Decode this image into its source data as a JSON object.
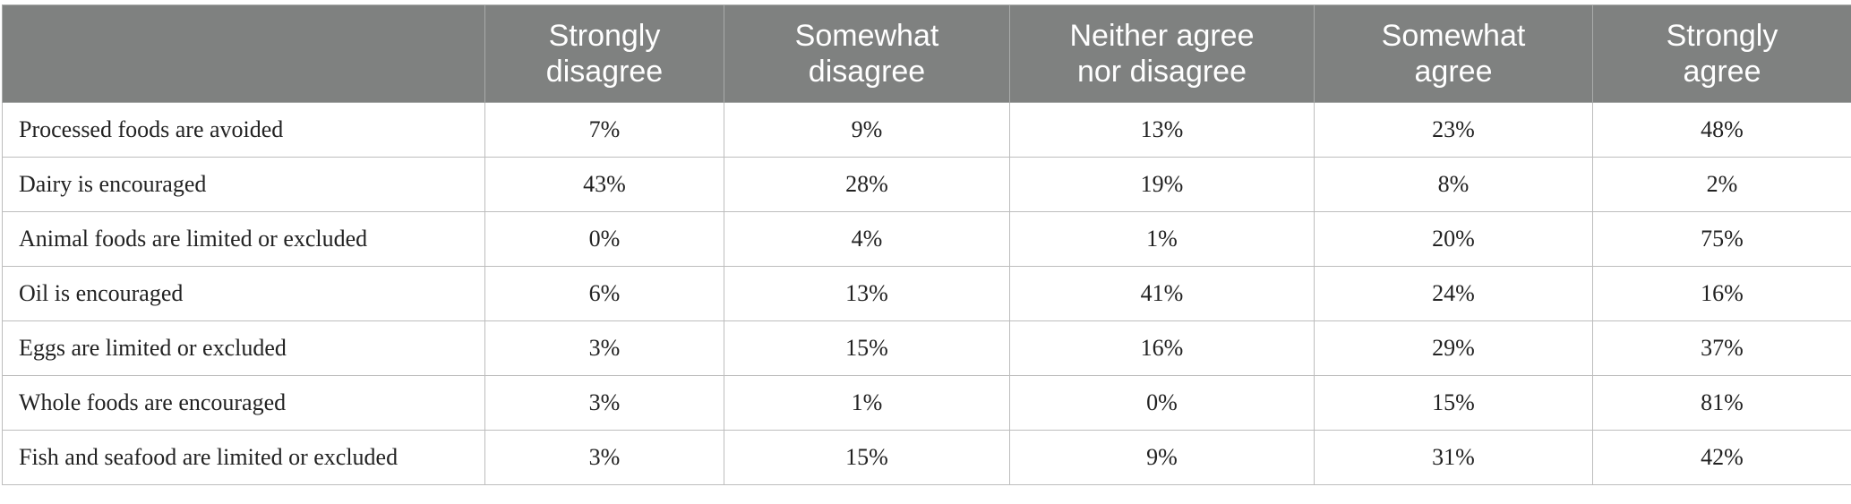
{
  "table": {
    "columns": [
      {
        "line1": "Strongly",
        "line2": "disagree"
      },
      {
        "line1": "Somewhat",
        "line2": "disagree"
      },
      {
        "line1": "Neither agree",
        "line2": "nor disagree"
      },
      {
        "line1": "Somewhat",
        "line2": "agree"
      },
      {
        "line1": "Strongly",
        "line2": "agree"
      }
    ],
    "rows": [
      {
        "label": "Processed foods are avoided",
        "values": [
          "7%",
          "9%",
          "13%",
          "23%",
          "48%"
        ]
      },
      {
        "label": "Dairy is encouraged",
        "values": [
          "43%",
          "28%",
          "19%",
          "8%",
          "2%"
        ]
      },
      {
        "label": "Animal foods are limited or excluded",
        "values": [
          "0%",
          "4%",
          "1%",
          "20%",
          "75%"
        ]
      },
      {
        "label": "Oil is encouraged",
        "values": [
          "6%",
          "13%",
          "41%",
          "24%",
          "16%"
        ]
      },
      {
        "label": "Eggs are limited or excluded",
        "values": [
          "3%",
          "15%",
          "16%",
          "29%",
          "37%"
        ]
      },
      {
        "label": "Whole foods are encouraged",
        "values": [
          "3%",
          "1%",
          "0%",
          "15%",
          "81%"
        ]
      },
      {
        "label": "Fish and seafood are limited or excluded",
        "values": [
          "3%",
          "15%",
          "9%",
          "31%",
          "42%"
        ]
      }
    ]
  }
}
